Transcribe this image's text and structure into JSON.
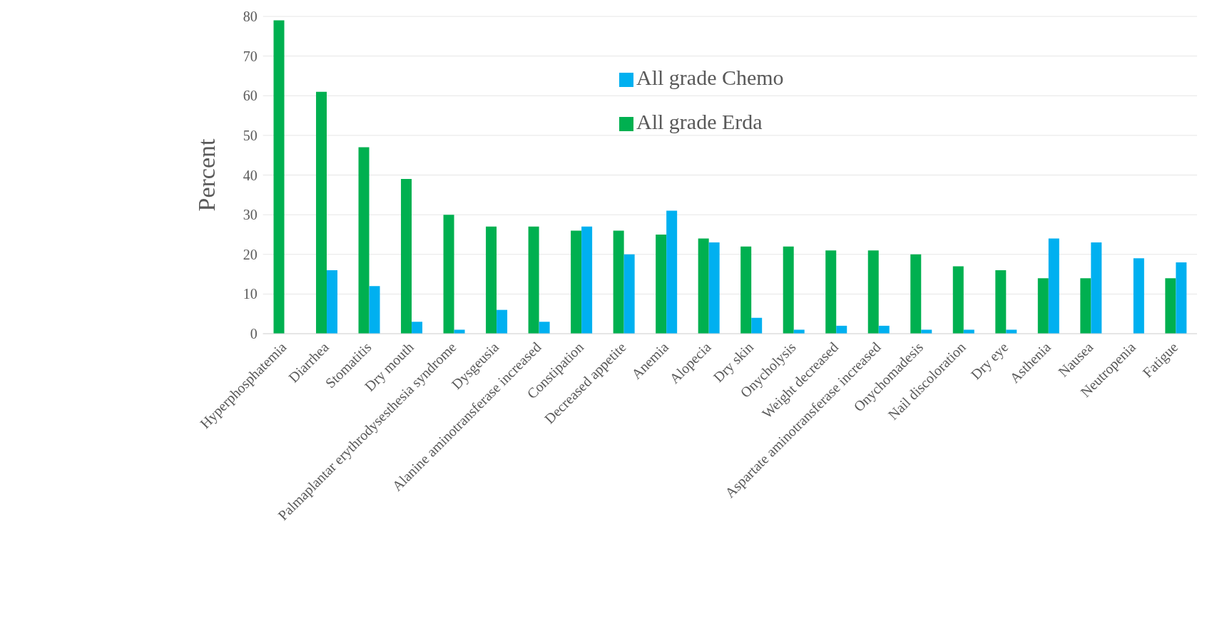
{
  "chart_data": {
    "type": "bar",
    "ylabel": "Percent",
    "categories": [
      "Hyperphosphatemia",
      "Diarrhea",
      "Stomatitis",
      "Dry mouth",
      "Palmaplantar erythrodysesthesia syndrome",
      "Dysgeusia",
      "Alanine aminotransferase increased",
      "Constipation",
      "Decreased appetite",
      "Anemia",
      "Alopecia",
      "Dry skin",
      "Onycholysis",
      "Weight decreased",
      "Aspartate aminotransferase increased",
      "Onychomadesis",
      "Nail discoloration",
      "Dry eye",
      "Asthenia",
      "Nausea",
      "Neutropenia",
      "Fatigue"
    ],
    "series": [
      {
        "name": "All grade Erda",
        "color": "#00b050",
        "values": [
          79,
          61,
          47,
          39,
          30,
          27,
          27,
          26,
          26,
          25,
          24,
          22,
          22,
          21,
          21,
          20,
          17,
          16,
          14,
          14,
          0,
          14
        ]
      },
      {
        "name": "All grade Chemo",
        "color": "#00b0f0",
        "values": [
          0,
          16,
          12,
          3,
          1,
          6,
          3,
          27,
          20,
          31,
          23,
          4,
          1,
          2,
          2,
          1,
          1,
          1,
          24,
          23,
          19,
          18
        ]
      }
    ],
    "ylim": [
      0,
      80
    ],
    "yticks": [
      0,
      10,
      20,
      30,
      40,
      50,
      60,
      70,
      80
    ],
    "grid": "y",
    "legend": "top"
  }
}
